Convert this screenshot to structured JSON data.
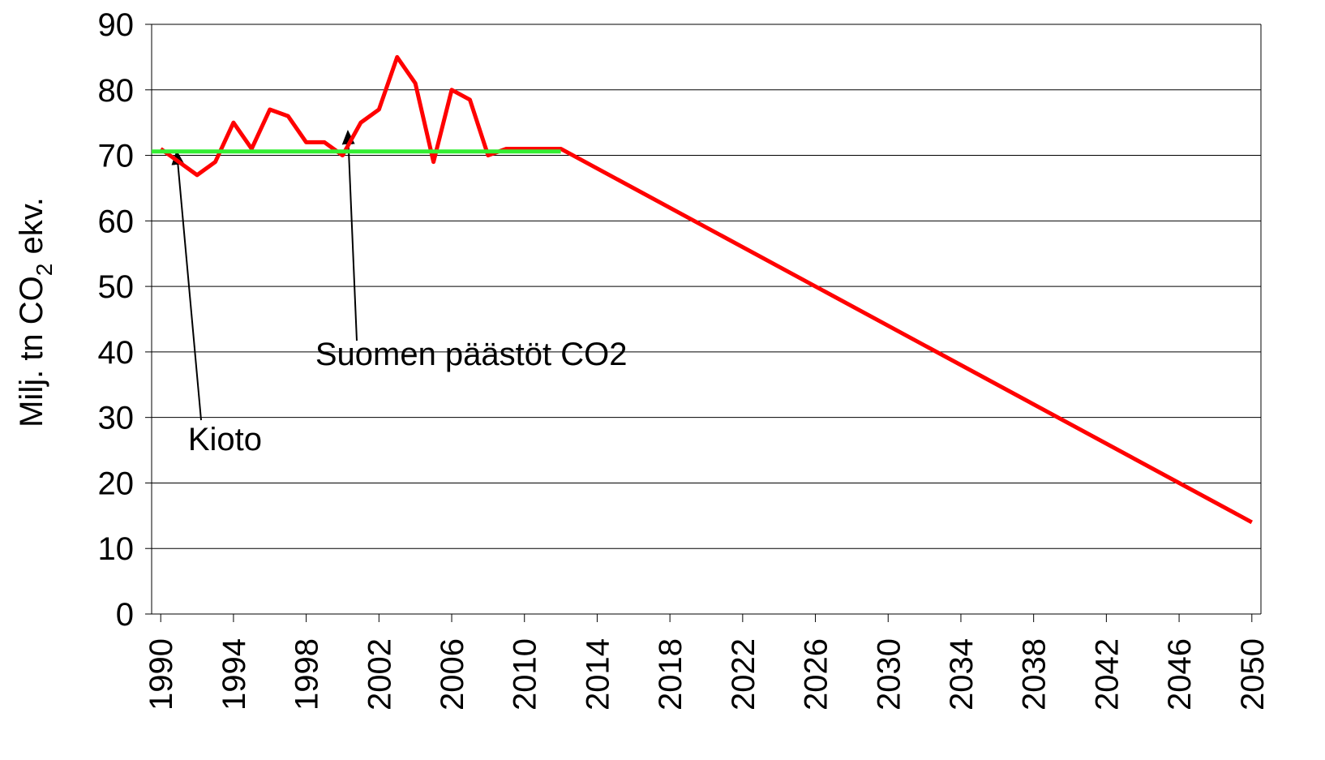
{
  "chart_data": {
    "type": "line",
    "ylabel": [
      "Milj. tn CO",
      "2",
      " ekv."
    ],
    "xlim": [
      1989.5,
      2050.5
    ],
    "xticks": [
      1990,
      1994,
      1998,
      2002,
      2006,
      2010,
      2014,
      2018,
      2022,
      2026,
      2030,
      2034,
      2038,
      2042,
      2046,
      2050
    ],
    "ylim": [
      0,
      90
    ],
    "yticks": [
      0,
      10,
      20,
      30,
      40,
      50,
      60,
      70,
      80,
      90
    ],
    "grid": true,
    "series": [
      {
        "color": "#ff0000",
        "x": [
          1990,
          1991,
          1992,
          1993,
          1994,
          1995,
          1996,
          1997,
          1998,
          1999,
          2000,
          2001,
          2002,
          2003,
          2004,
          2005,
          2006,
          2007,
          2008,
          2009,
          2010,
          2011,
          2012,
          2050
        ],
        "values": [
          71,
          69,
          67,
          69,
          75,
          71,
          77,
          76,
          72,
          72,
          70,
          75,
          77,
          85,
          81,
          69,
          80,
          78.5,
          70,
          71,
          71,
          71,
          71,
          14
        ]
      },
      {
        "color": "#33ee33",
        "x": [
          1989.5,
          2012
        ],
        "values": [
          70.6,
          70.6
        ]
      }
    ],
    "annotations": [
      {
        "text": "Kioto",
        "x": 1991.5,
        "y": 25
      },
      {
        "text": "Suomen päästöt CO2",
        "x": 1998.5,
        "y": 38
      }
    ]
  }
}
